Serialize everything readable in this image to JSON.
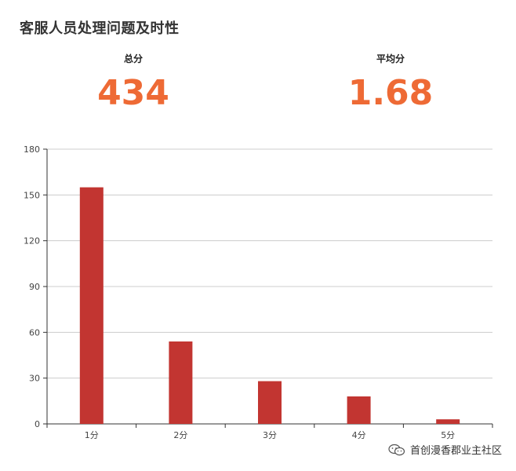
{
  "title": "客服人员处理问题及时性",
  "kpis": {
    "total": {
      "label": "总分",
      "value": "434"
    },
    "average": {
      "label": "平均分",
      "value": "1.68"
    }
  },
  "watermark": {
    "text": "首创漫香郡业主社区",
    "icon": "wechat-icon"
  },
  "colors": {
    "bar": "#c23531",
    "kpi_value": "#ee6a35",
    "grid": "#cccccc",
    "axis": "#333333"
  },
  "chart_data": {
    "type": "bar",
    "title": "",
    "xlabel": "",
    "ylabel": "",
    "categories": [
      "1分",
      "2分",
      "3分",
      "4分",
      "5分"
    ],
    "values": [
      155,
      54,
      28,
      18,
      3
    ],
    "ylim": [
      0,
      180
    ],
    "yticks": [
      0,
      30,
      60,
      90,
      120,
      150,
      180
    ],
    "grid": true
  }
}
